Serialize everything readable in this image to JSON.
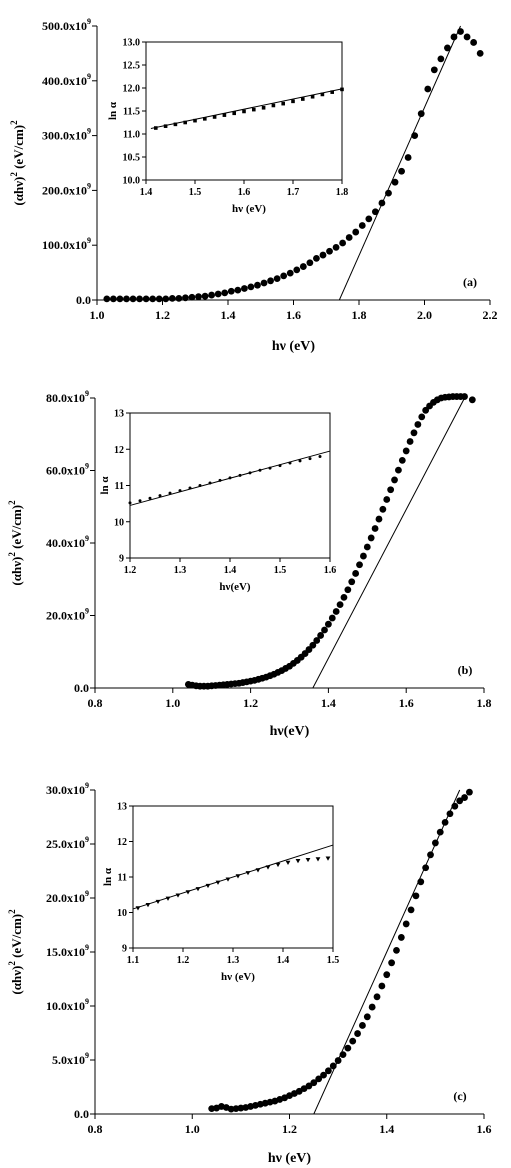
{
  "chart_data": [
    {
      "type": "scatter",
      "panel_label": "(a)",
      "xlabel": "hν (eV)",
      "ylabel_parts": [
        "(αhν)",
        "2",
        " (eV/cm)",
        "2"
      ],
      "xlim": [
        1.0,
        2.2
      ],
      "ylim": [
        0,
        500
      ],
      "xticks": [
        1.0,
        1.2,
        1.4,
        1.6,
        1.8,
        2.0,
        2.2
      ],
      "xtick_labels": [
        "1.0",
        "1.2",
        "1.4",
        "1.6",
        "1.8",
        "2.0",
        "2.2"
      ],
      "yticks": [
        0,
        100,
        200,
        300,
        400,
        500
      ],
      "ytick_mantissas": [
        "0.0",
        "100.0x10",
        "200.0x10",
        "300.0x10",
        "400.0x10",
        "500.0x10"
      ],
      "ytick_exponent": "9",
      "y_unit_note": "y values in units of 10^9",
      "series": [
        {
          "marker": "circle",
          "x": [
            1.03,
            1.05,
            1.07,
            1.09,
            1.11,
            1.13,
            1.15,
            1.17,
            1.19,
            1.21,
            1.23,
            1.25,
            1.27,
            1.29,
            1.31,
            1.33,
            1.35,
            1.37,
            1.39,
            1.41,
            1.43,
            1.45,
            1.47,
            1.49,
            1.51,
            1.53,
            1.55,
            1.57,
            1.59,
            1.61,
            1.63,
            1.65,
            1.67,
            1.69,
            1.71,
            1.73,
            1.75,
            1.77,
            1.79,
            1.81,
            1.83,
            1.85,
            1.87,
            1.89,
            1.91,
            1.93,
            1.95,
            1.97,
            1.99,
            2.01,
            2.03,
            2.05,
            2.07,
            2.09,
            2.11,
            2.13,
            2.15,
            2.17
          ],
          "y": [
            2,
            2,
            2,
            2,
            2,
            2,
            2,
            2,
            2,
            2,
            3,
            3,
            4,
            5,
            6,
            7,
            9,
            11,
            13,
            16,
            18,
            21,
            24,
            27,
            31,
            35,
            39,
            44,
            49,
            55,
            61,
            68,
            76,
            82,
            89,
            96,
            104,
            114,
            124,
            136,
            148,
            161,
            177,
            195,
            215,
            235,
            260,
            300,
            340,
            385,
            420,
            440,
            460,
            480,
            490,
            480,
            470,
            450
          ]
        }
      ],
      "fit_line": {
        "x": [
          1.74,
          2.11
        ],
        "y": [
          0,
          500
        ]
      },
      "inset": {
        "type": "scatter",
        "xlabel": "hν (eV)",
        "ylabel": "ln α",
        "xlim": [
          1.4,
          1.8
        ],
        "ylim": [
          10.0,
          13.0
        ],
        "xticks": [
          1.4,
          1.5,
          1.6,
          1.7,
          1.8
        ],
        "xtick_labels": [
          "1.4",
          "1.5",
          "1.6",
          "1.7",
          "1.8"
        ],
        "yticks": [
          10.0,
          10.5,
          11.0,
          11.5,
          12.0,
          12.5,
          13.0
        ],
        "ytick_labels": [
          "10.0",
          "10.5",
          "11.0",
          "11.5",
          "12.0",
          "12.5",
          "13.0"
        ],
        "marker": "square",
        "x": [
          1.42,
          1.44,
          1.46,
          1.48,
          1.5,
          1.52,
          1.54,
          1.56,
          1.58,
          1.6,
          1.62,
          1.64,
          1.66,
          1.68,
          1.7,
          1.72,
          1.74,
          1.76,
          1.78,
          1.8
        ],
        "y": [
          11.13,
          11.17,
          11.21,
          11.25,
          11.29,
          11.33,
          11.37,
          11.41,
          11.45,
          11.49,
          11.53,
          11.57,
          11.62,
          11.66,
          11.71,
          11.76,
          11.81,
          11.86,
          11.91,
          11.97
        ],
        "fit_line": {
          "x": [
            1.41,
            1.8
          ],
          "y": [
            11.12,
            11.98
          ]
        }
      }
    },
    {
      "type": "scatter",
      "panel_label": "(b)",
      "xlabel": "hν(eV)",
      "ylabel_parts": [
        "(αhν)",
        "2",
        " (eV/cm)",
        "2"
      ],
      "xlim": [
        0.8,
        1.8
      ],
      "ylim": [
        0,
        80
      ],
      "xticks": [
        0.8,
        1.0,
        1.2,
        1.4,
        1.6,
        1.8
      ],
      "xtick_labels": [
        "0.8",
        "1.0",
        "1.2",
        "1.4",
        "1.6",
        "1.8"
      ],
      "yticks": [
        0,
        20,
        40,
        60,
        80
      ],
      "ytick_mantissas": [
        "0.0",
        "20.0x10",
        "40.0x10",
        "60.0x10",
        "80.0x10"
      ],
      "ytick_exponent": "9",
      "y_unit_note": "y values in units of 10^9",
      "series": [
        {
          "marker": "circle",
          "x": [
            1.04,
            1.05,
            1.06,
            1.07,
            1.08,
            1.09,
            1.1,
            1.11,
            1.12,
            1.13,
            1.14,
            1.15,
            1.16,
            1.17,
            1.18,
            1.19,
            1.2,
            1.21,
            1.22,
            1.23,
            1.24,
            1.25,
            1.26,
            1.27,
            1.28,
            1.29,
            1.3,
            1.31,
            1.32,
            1.33,
            1.34,
            1.35,
            1.36,
            1.37,
            1.38,
            1.39,
            1.4,
            1.41,
            1.42,
            1.43,
            1.44,
            1.45,
            1.46,
            1.47,
            1.48,
            1.49,
            1.5,
            1.51,
            1.52,
            1.53,
            1.54,
            1.55,
            1.56,
            1.57,
            1.58,
            1.59,
            1.6,
            1.61,
            1.62,
            1.63,
            1.64,
            1.65,
            1.66,
            1.67,
            1.68,
            1.69,
            1.7,
            1.71,
            1.72,
            1.73,
            1.74,
            1.75,
            1.77
          ],
          "y": [
            1.0,
            0.8,
            0.6,
            0.5,
            0.5,
            0.5,
            0.6,
            0.7,
            0.8,
            0.9,
            1.0,
            1.1,
            1.2,
            1.3,
            1.5,
            1.7,
            1.9,
            2.1,
            2.4,
            2.7,
            3.0,
            3.4,
            3.8,
            4.3,
            4.8,
            5.4,
            6.0,
            6.8,
            7.6,
            8.5,
            9.5,
            10.6,
            11.8,
            13.1,
            14.5,
            16.0,
            17.6,
            19.3,
            21.1,
            23.0,
            25.0,
            27.1,
            29.3,
            31.6,
            34.0,
            36.4,
            38.9,
            41.4,
            44.0,
            46.6,
            49.3,
            52.0,
            54.7,
            57.4,
            60.1,
            62.8,
            65.4,
            68.0,
            70.4,
            72.7,
            74.8,
            76.6,
            77.8,
            78.8,
            79.5,
            80.0,
            80.2,
            80.3,
            80.4,
            80.4,
            80.4,
            80.4,
            79.5
          ]
        }
      ],
      "fit_line": {
        "x": [
          1.36,
          1.75
        ],
        "y": [
          0,
          80
        ]
      },
      "inset": {
        "type": "scatter",
        "xlabel": "hν(eV)",
        "ylabel": "ln α",
        "xlim": [
          1.2,
          1.6
        ],
        "ylim": [
          9,
          13
        ],
        "xticks": [
          1.2,
          1.3,
          1.4,
          1.5,
          1.6
        ],
        "xtick_labels": [
          "1.2",
          "1.3",
          "1.4",
          "1.5",
          "1.6"
        ],
        "yticks": [
          9,
          10,
          11,
          12,
          13
        ],
        "ytick_labels": [
          "9",
          "10",
          "11",
          "12",
          "13"
        ],
        "marker": "dot",
        "x": [
          1.2,
          1.22,
          1.24,
          1.26,
          1.28,
          1.3,
          1.32,
          1.34,
          1.36,
          1.38,
          1.4,
          1.42,
          1.44,
          1.46,
          1.48,
          1.5,
          1.52,
          1.54,
          1.56,
          1.58
        ],
        "y": [
          10.52,
          10.58,
          10.65,
          10.72,
          10.79,
          10.86,
          10.93,
          11.0,
          11.07,
          11.14,
          11.21,
          11.28,
          11.35,
          11.42,
          11.48,
          11.55,
          11.62,
          11.68,
          11.74,
          11.8
        ],
        "fit_line": {
          "x": [
            1.2,
            1.6
          ],
          "y": [
            10.45,
            11.95
          ]
        }
      }
    },
    {
      "type": "scatter",
      "panel_label": "(c)",
      "xlabel": "hν (eV)",
      "ylabel_parts": [
        "(αhν)",
        "2",
        " (eV/cm)",
        "2"
      ],
      "xlim": [
        0.8,
        1.6
      ],
      "ylim": [
        0,
        30
      ],
      "xticks": [
        0.8,
        1.0,
        1.2,
        1.4,
        1.6
      ],
      "xtick_labels": [
        "0.8",
        "1.0",
        "1.2",
        "1.4",
        "1.6"
      ],
      "yticks": [
        0,
        5,
        10,
        15,
        20,
        25,
        30
      ],
      "ytick_mantissas": [
        "0.0",
        "5.0x10",
        "10.0x10",
        "15.0x10",
        "20.0x10",
        "25.0x10",
        "30.0x10"
      ],
      "ytick_exponent": "9",
      "y_unit_note": "y values in units of 10^9",
      "series": [
        {
          "marker": "circle",
          "x": [
            1.04,
            1.05,
            1.06,
            1.07,
            1.08,
            1.09,
            1.1,
            1.11,
            1.12,
            1.13,
            1.14,
            1.15,
            1.16,
            1.17,
            1.18,
            1.19,
            1.2,
            1.21,
            1.22,
            1.23,
            1.24,
            1.25,
            1.26,
            1.27,
            1.28,
            1.29,
            1.3,
            1.31,
            1.32,
            1.33,
            1.34,
            1.35,
            1.36,
            1.37,
            1.38,
            1.39,
            1.4,
            1.41,
            1.42,
            1.43,
            1.44,
            1.45,
            1.46,
            1.47,
            1.48,
            1.49,
            1.5,
            1.51,
            1.52,
            1.53,
            1.54,
            1.55,
            1.56,
            1.57
          ],
          "y": [
            0.5,
            0.55,
            0.7,
            0.6,
            0.45,
            0.5,
            0.55,
            0.6,
            0.7,
            0.8,
            0.9,
            1.0,
            1.1,
            1.2,
            1.35,
            1.5,
            1.7,
            1.9,
            2.1,
            2.35,
            2.6,
            2.9,
            3.25,
            3.6,
            4.0,
            4.45,
            4.95,
            5.5,
            6.1,
            6.75,
            7.45,
            8.2,
            9.0,
            9.9,
            10.85,
            11.85,
            12.9,
            14.0,
            15.15,
            16.35,
            17.6,
            18.9,
            20.2,
            21.5,
            22.8,
            24.0,
            25.1,
            26.1,
            27.0,
            27.8,
            28.5,
            29.0,
            29.3,
            29.8
          ]
        }
      ],
      "fit_line": {
        "x": [
          1.25,
          1.55
        ],
        "y": [
          0,
          30
        ]
      },
      "inset": {
        "type": "scatter",
        "xlabel": "hν (eV)",
        "ylabel": "ln α",
        "xlim": [
          1.1,
          1.5
        ],
        "ylim": [
          9,
          13
        ],
        "xticks": [
          1.1,
          1.2,
          1.3,
          1.4,
          1.5
        ],
        "xtick_labels": [
          "1.1",
          "1.2",
          "1.3",
          "1.4",
          "1.5"
        ],
        "yticks": [
          9,
          10,
          11,
          12,
          13
        ],
        "ytick_labels": [
          "9",
          "10",
          "11",
          "12",
          "13"
        ],
        "marker": "triangle-down",
        "x": [
          1.11,
          1.13,
          1.15,
          1.17,
          1.19,
          1.21,
          1.23,
          1.25,
          1.27,
          1.29,
          1.31,
          1.33,
          1.35,
          1.37,
          1.39,
          1.41,
          1.43,
          1.45,
          1.47,
          1.49
        ],
        "y": [
          10.12,
          10.21,
          10.3,
          10.39,
          10.48,
          10.57,
          10.66,
          10.75,
          10.84,
          10.93,
          11.02,
          11.11,
          11.19,
          11.27,
          11.34,
          11.4,
          11.45,
          11.48,
          11.5,
          11.52
        ],
        "fit_line": {
          "x": [
            1.1,
            1.5
          ],
          "y": [
            10.1,
            11.9
          ]
        }
      }
    }
  ]
}
